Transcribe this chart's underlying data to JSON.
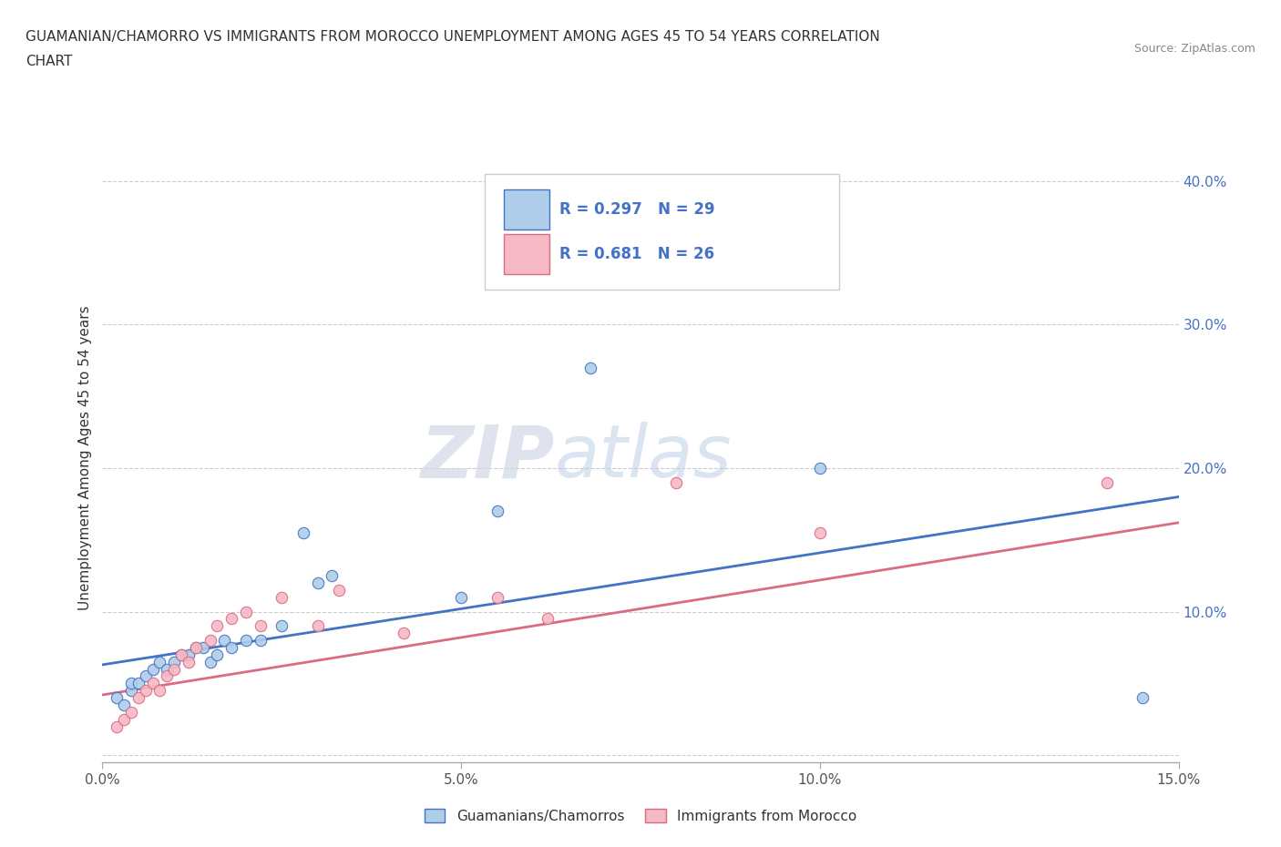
{
  "title_line1": "GUAMANIAN/CHAMORRO VS IMMIGRANTS FROM MOROCCO UNEMPLOYMENT AMONG AGES 45 TO 54 YEARS CORRELATION",
  "title_line2": "CHART",
  "source_text": "Source: ZipAtlas.com",
  "ylabel": "Unemployment Among Ages 45 to 54 years",
  "xlim": [
    0.0,
    0.15
  ],
  "ylim": [
    -0.005,
    0.42
  ],
  "xticks": [
    0.0,
    0.05,
    0.1,
    0.15
  ],
  "xticklabels": [
    "0.0%",
    "5.0%",
    "10.0%",
    "15.0%"
  ],
  "yticks": [
    0.0,
    0.1,
    0.2,
    0.3,
    0.4
  ],
  "ytick_right_labels": [
    "",
    "10.0%",
    "20.0%",
    "30.0%",
    "40.0%"
  ],
  "guam_scatter_x": [
    0.002,
    0.003,
    0.004,
    0.004,
    0.005,
    0.006,
    0.007,
    0.008,
    0.009,
    0.01,
    0.011,
    0.012,
    0.013,
    0.014,
    0.015,
    0.016,
    0.017,
    0.018,
    0.02,
    0.022,
    0.025,
    0.028,
    0.03,
    0.032,
    0.05,
    0.055,
    0.068,
    0.1,
    0.145
  ],
  "guam_scatter_y": [
    0.04,
    0.035,
    0.045,
    0.05,
    0.05,
    0.055,
    0.06,
    0.065,
    0.06,
    0.065,
    0.07,
    0.07,
    0.075,
    0.075,
    0.065,
    0.07,
    0.08,
    0.075,
    0.08,
    0.08,
    0.09,
    0.155,
    0.12,
    0.125,
    0.11,
    0.17,
    0.27,
    0.2,
    0.04
  ],
  "morocco_scatter_x": [
    0.002,
    0.003,
    0.004,
    0.005,
    0.006,
    0.007,
    0.008,
    0.009,
    0.01,
    0.011,
    0.012,
    0.013,
    0.015,
    0.016,
    0.018,
    0.02,
    0.022,
    0.025,
    0.03,
    0.033,
    0.042,
    0.055,
    0.062,
    0.08,
    0.1,
    0.14
  ],
  "morocco_scatter_y": [
    0.02,
    0.025,
    0.03,
    0.04,
    0.045,
    0.05,
    0.045,
    0.055,
    0.06,
    0.07,
    0.065,
    0.075,
    0.08,
    0.09,
    0.095,
    0.1,
    0.09,
    0.11,
    0.09,
    0.115,
    0.085,
    0.11,
    0.095,
    0.19,
    0.155,
    0.19
  ],
  "guam_line_x": [
    0.0,
    0.15
  ],
  "guam_line_y": [
    0.063,
    0.18
  ],
  "morocco_line_x": [
    0.0,
    0.15
  ],
  "morocco_line_y": [
    0.042,
    0.162
  ],
  "guam_color": "#aecde8",
  "morocco_color": "#f5b8c4",
  "guam_line_color": "#4472c4",
  "morocco_line_color": "#d96b82",
  "legend_r1": "R = 0.297",
  "legend_n1": "N = 29",
  "legend_r2": "R = 0.681",
  "legend_n2": "N = 26",
  "legend_label1": "Guamanians/Chamorros",
  "legend_label2": "Immigrants from Morocco",
  "watermark_zip": "ZIP",
  "watermark_atlas": "atlas",
  "background_color": "#ffffff",
  "grid_color": "#cccccc",
  "title_color": "#333333",
  "label_color": "#333333",
  "tick_color": "#555555",
  "right_tick_color": "#4472c4"
}
